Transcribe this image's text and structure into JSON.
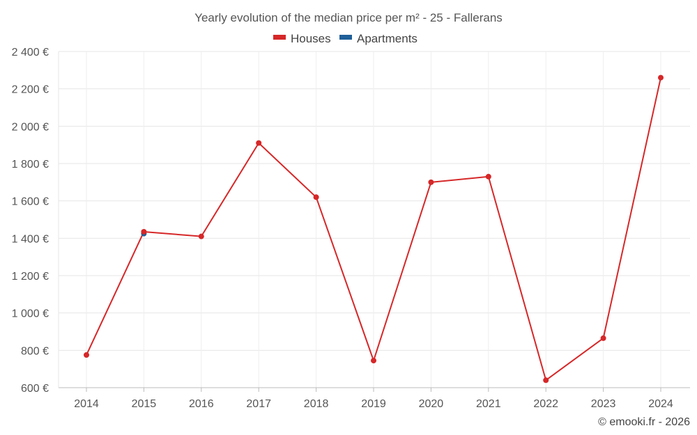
{
  "chart_data": {
    "type": "line",
    "title": "Yearly evolution of the median price per m² - 25 - Fallerans",
    "categories": [
      "2014",
      "2015",
      "2016",
      "2017",
      "2018",
      "2019",
      "2020",
      "2021",
      "2022",
      "2023",
      "2024"
    ],
    "series": [
      {
        "name": "Houses",
        "color": "#d62728",
        "values": [
          775,
          1435,
          1410,
          1910,
          1620,
          745,
          1700,
          1730,
          640,
          865,
          2260
        ]
      },
      {
        "name": "Apartments",
        "color": "#1f5f99",
        "values": [
          null,
          1425,
          null,
          null,
          null,
          null,
          null,
          null,
          null,
          null,
          null
        ]
      }
    ],
    "y_ticks": [
      "600 €",
      "800 €",
      "1 000 €",
      "1 200 €",
      "1 400 €",
      "1 600 €",
      "1 800 €",
      "2 000 €",
      "2 200 €",
      "2 400 €"
    ],
    "ylim": [
      600,
      2400
    ],
    "xlabel": "",
    "ylabel": "",
    "grid": true,
    "legend_position": "top-center",
    "credit": "© emooki.fr - 2026"
  }
}
